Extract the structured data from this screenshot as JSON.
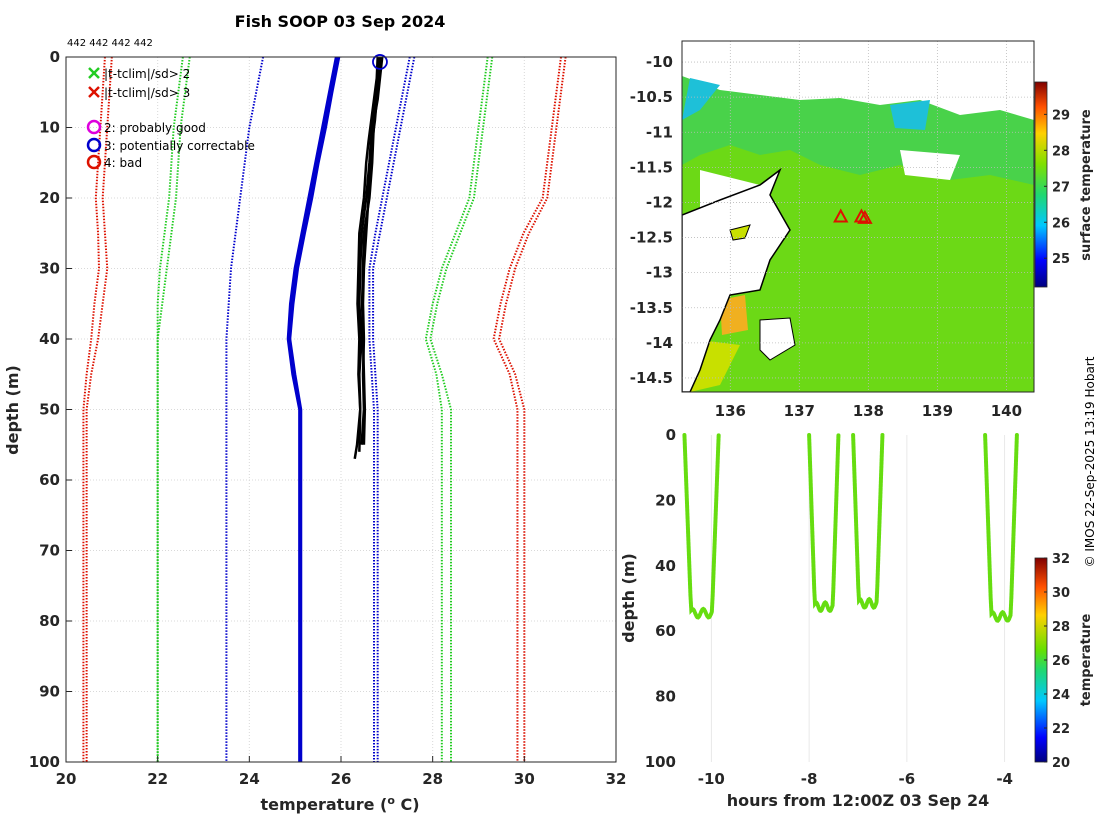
{
  "title": "Fish SOOP 03 Sep 2024",
  "counts_label": "442 442 442 442",
  "watermark": "© IMOS 22-Sep-2025 13:19 Hobart",
  "colors": {
    "green": "#22cc22",
    "red": "#dd1100",
    "blue": "#0000cc",
    "black": "#000000",
    "magenta": "#dd00dd"
  },
  "legend": {
    "cross_2": "|t-tclim|/sd> 2",
    "cross_3": "|t-tclim|/sd> 3",
    "flag_2": "2: probably good",
    "flag_3": "3: potentially correctable",
    "flag_4": "4: bad"
  },
  "chart_data": [
    {
      "id": "profile",
      "type": "line",
      "xlabel": "temperature (° C)",
      "xlabel_main": "temperature (",
      "xlabel_sup": "o",
      "xlabel_end": " C)",
      "ylabel": "depth (m)",
      "xlim": [
        20,
        32
      ],
      "ylim": [
        0,
        100
      ],
      "xticks": [
        20,
        22,
        24,
        26,
        28,
        30,
        32
      ],
      "yticks": [
        0,
        10,
        20,
        30,
        40,
        50,
        60,
        70,
        80,
        90,
        100
      ],
      "depths": [
        0,
        5,
        10,
        15,
        20,
        25,
        30,
        35,
        40,
        45,
        50,
        100
      ],
      "series": [
        {
          "name": "clim_mean",
          "style": "thick",
          "color": "#0000cc",
          "values": [
            25.9,
            25.75,
            25.6,
            25.45,
            25.3,
            25.15,
            25.0,
            24.9,
            24.85,
            24.95,
            25.1,
            25.1
          ]
        },
        {
          "name": "clim_mean_b",
          "style": "thick",
          "color": "#0000cc",
          "values": [
            25.95,
            25.8,
            25.66,
            25.5,
            25.36,
            25.2,
            25.05,
            24.95,
            24.88,
            24.99,
            25.12,
            25.12
          ]
        },
        {
          "name": "minus_1sd",
          "style": "dotted",
          "color": "#0000cc",
          "values": [
            24.3,
            24.15,
            24.0,
            23.9,
            23.8,
            23.7,
            23.6,
            23.55,
            23.5,
            23.5,
            23.5,
            23.5
          ]
        },
        {
          "name": "plus_1sd",
          "style": "dotted",
          "color": "#0000cc",
          "values": [
            27.6,
            27.45,
            27.3,
            27.15,
            27.0,
            26.85,
            26.7,
            26.7,
            26.7,
            26.75,
            26.8,
            26.8
          ]
        },
        {
          "name": "plus_1sd_b",
          "style": "dotted",
          "color": "#0000cc",
          "values": [
            27.5,
            27.35,
            27.2,
            27.05,
            26.9,
            26.75,
            26.62,
            26.62,
            26.62,
            26.67,
            26.72,
            26.72
          ]
        },
        {
          "name": "minus_2sd",
          "style": "dotted",
          "color": "#22cc22",
          "values": [
            22.7,
            22.6,
            22.5,
            22.45,
            22.4,
            22.3,
            22.2,
            22.1,
            22.0,
            22.0,
            22.0,
            22.0
          ]
        },
        {
          "name": "minus_2sd_b",
          "style": "dotted",
          "color": "#22cc22",
          "values": [
            22.55,
            22.45,
            22.35,
            22.3,
            22.25,
            22.15,
            22.05,
            22.0,
            22.0,
            22.0,
            22.0,
            22.0
          ]
        },
        {
          "name": "plus_2sd",
          "style": "dotted",
          "color": "#22cc22",
          "values": [
            29.3,
            29.2,
            29.1,
            29.0,
            28.9,
            28.6,
            28.3,
            28.1,
            27.95,
            28.2,
            28.4,
            28.4
          ]
        },
        {
          "name": "plus_2sd_b",
          "style": "dotted",
          "color": "#22cc22",
          "values": [
            29.2,
            29.1,
            29.0,
            28.9,
            28.8,
            28.5,
            28.2,
            28.0,
            27.85,
            28.08,
            28.2,
            28.2
          ]
        },
        {
          "name": "minus_3sd",
          "style": "dotted",
          "color": "#dd1100",
          "values": [
            21.0,
            20.95,
            20.9,
            20.85,
            20.8,
            20.85,
            20.9,
            20.8,
            20.7,
            20.55,
            20.45,
            20.45
          ]
        },
        {
          "name": "minus_3sd_b",
          "style": "dotted",
          "color": "#dd1100",
          "values": [
            20.85,
            20.8,
            20.75,
            20.7,
            20.65,
            20.7,
            20.72,
            20.62,
            20.55,
            20.45,
            20.38,
            20.38
          ]
        },
        {
          "name": "plus_3sd",
          "style": "dotted",
          "color": "#dd1100",
          "values": [
            30.9,
            30.8,
            30.7,
            30.6,
            30.5,
            30.1,
            29.8,
            29.6,
            29.45,
            29.8,
            30.0,
            30.0
          ]
        },
        {
          "name": "plus_3sd_b",
          "style": "dotted",
          "color": "#dd1100",
          "values": [
            30.8,
            30.7,
            30.6,
            30.5,
            30.4,
            29.98,
            29.68,
            29.48,
            29.33,
            29.68,
            29.85,
            29.85
          ]
        }
      ],
      "profiles": [
        {
          "depths": [
            0,
            3,
            6,
            9,
            12,
            15,
            20,
            25,
            30,
            35,
            40,
            45,
            50,
            55,
            57
          ],
          "values": [
            26.85,
            26.8,
            26.75,
            26.7,
            26.65,
            26.62,
            26.55,
            26.45,
            26.42,
            26.4,
            26.45,
            26.4,
            26.42,
            26.35,
            26.3
          ]
        },
        {
          "depths": [
            0,
            3,
            6,
            9,
            12,
            15,
            20,
            25,
            30,
            35,
            40,
            45,
            50,
            55
          ],
          "values": [
            26.85,
            26.82,
            26.78,
            26.74,
            26.68,
            26.64,
            26.6,
            26.55,
            26.5,
            26.48,
            26.5,
            26.48,
            26.5,
            26.45
          ]
        },
        {
          "depths": [
            0,
            3,
            6,
            9,
            12,
            15,
            20,
            25,
            30,
            35,
            40,
            45,
            50,
            56
          ],
          "values": [
            26.8,
            26.78,
            26.72,
            26.66,
            26.6,
            26.55,
            26.5,
            26.4,
            26.38,
            26.36,
            26.4,
            26.38,
            26.42,
            26.4
          ]
        },
        {
          "depths": [
            0,
            3,
            6,
            9,
            12,
            15,
            20,
            25,
            30,
            35,
            40,
            45,
            50,
            55
          ],
          "values": [
            26.9,
            26.85,
            26.8,
            26.72,
            26.7,
            26.68,
            26.62,
            26.5,
            26.48,
            26.46,
            26.48,
            26.5,
            26.52,
            26.5
          ]
        }
      ],
      "flag_marker": {
        "x": 26.85,
        "y": 0.7,
        "flag": 3
      }
    },
    {
      "id": "map",
      "type": "heatmap",
      "colorbar_label": "surface temperature",
      "xlim": [
        135.3,
        140.4
      ],
      "ylim": [
        -14.7,
        -9.7
      ],
      "xticks": [
        136,
        137,
        138,
        139,
        140
      ],
      "yticks": [
        -10,
        -10.5,
        -11,
        -11.5,
        -12,
        -12.5,
        -13,
        -13.5,
        -14,
        -14.5
      ],
      "ytick_labels": [
        "-10",
        "-10.5",
        "-11",
        "-11.5",
        "-12",
        "-12.5",
        "-13",
        "-13.5",
        "-14",
        "-14.5"
      ],
      "clim": [
        24.2,
        29.9
      ],
      "cticks": [
        25,
        26,
        27,
        28,
        29
      ],
      "stations": [
        {
          "lon": 137.6,
          "lat": -12.2
        },
        {
          "lon": 137.9,
          "lat": -12.2
        },
        {
          "lon": 137.95,
          "lat": -12.22
        }
      ]
    },
    {
      "id": "hovmoller",
      "type": "scatter",
      "xlabel": "hours from 12:00Z 03 Sep 24",
      "ylabel": "depth (m)",
      "colorbar_label": "temperature",
      "xlim": [
        -10.6,
        -3.4
      ],
      "ylim": [
        0,
        100
      ],
      "xticks": [
        -10,
        -8,
        -6,
        -4
      ],
      "yticks": [
        0,
        20,
        40,
        60,
        80,
        100
      ],
      "clim": [
        20,
        32
      ],
      "cticks": [
        20,
        22,
        24,
        26,
        28,
        30,
        32
      ],
      "casts": [
        {
          "t0": -10.55,
          "t1": -9.85,
          "maxdepth": 56
        },
        {
          "t0": -8.0,
          "t1": -7.4,
          "maxdepth": 54
        },
        {
          "t0": -7.1,
          "t1": -6.5,
          "maxdepth": 53
        },
        {
          "t0": -4.4,
          "t1": -3.75,
          "maxdepth": 57
        }
      ],
      "cast_temperature": 26.6
    }
  ]
}
